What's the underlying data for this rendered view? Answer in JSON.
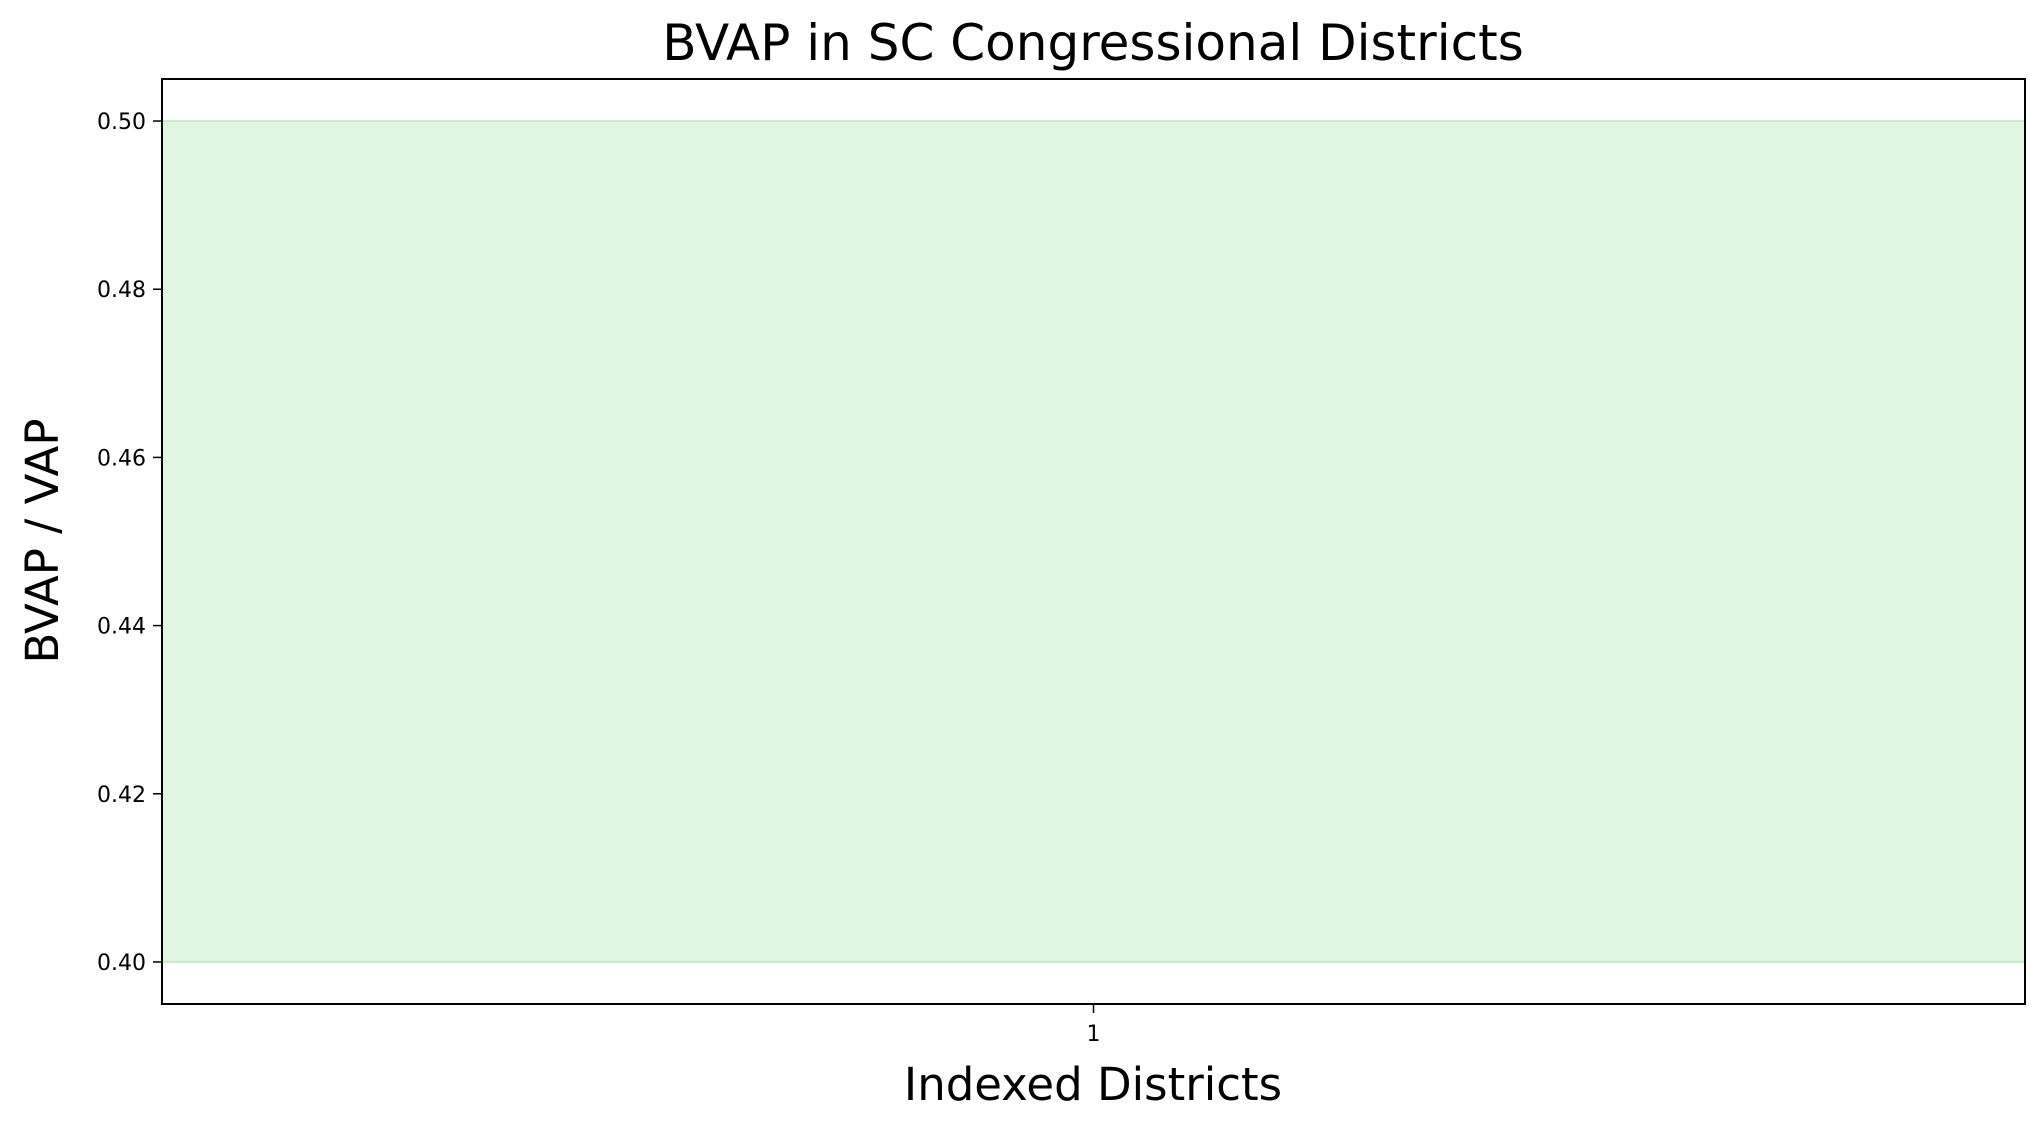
{
  "chart_data": {
    "type": "area",
    "title": "BVAP in SC Congressional Districts",
    "xlabel": "Indexed Districts",
    "ylabel": "BVAP / VAP",
    "x_ticks": [
      "1"
    ],
    "y_ticks": [
      "0.40",
      "0.42",
      "0.44",
      "0.46",
      "0.48",
      "0.50"
    ],
    "ylim": [
      0.395,
      0.505
    ],
    "bands": [
      {
        "y_min": 0.4,
        "y_max": 0.5,
        "color": "#e0f6e0",
        "edge_color": "#c9ecc9"
      }
    ],
    "grid": false,
    "legend": "none"
  }
}
